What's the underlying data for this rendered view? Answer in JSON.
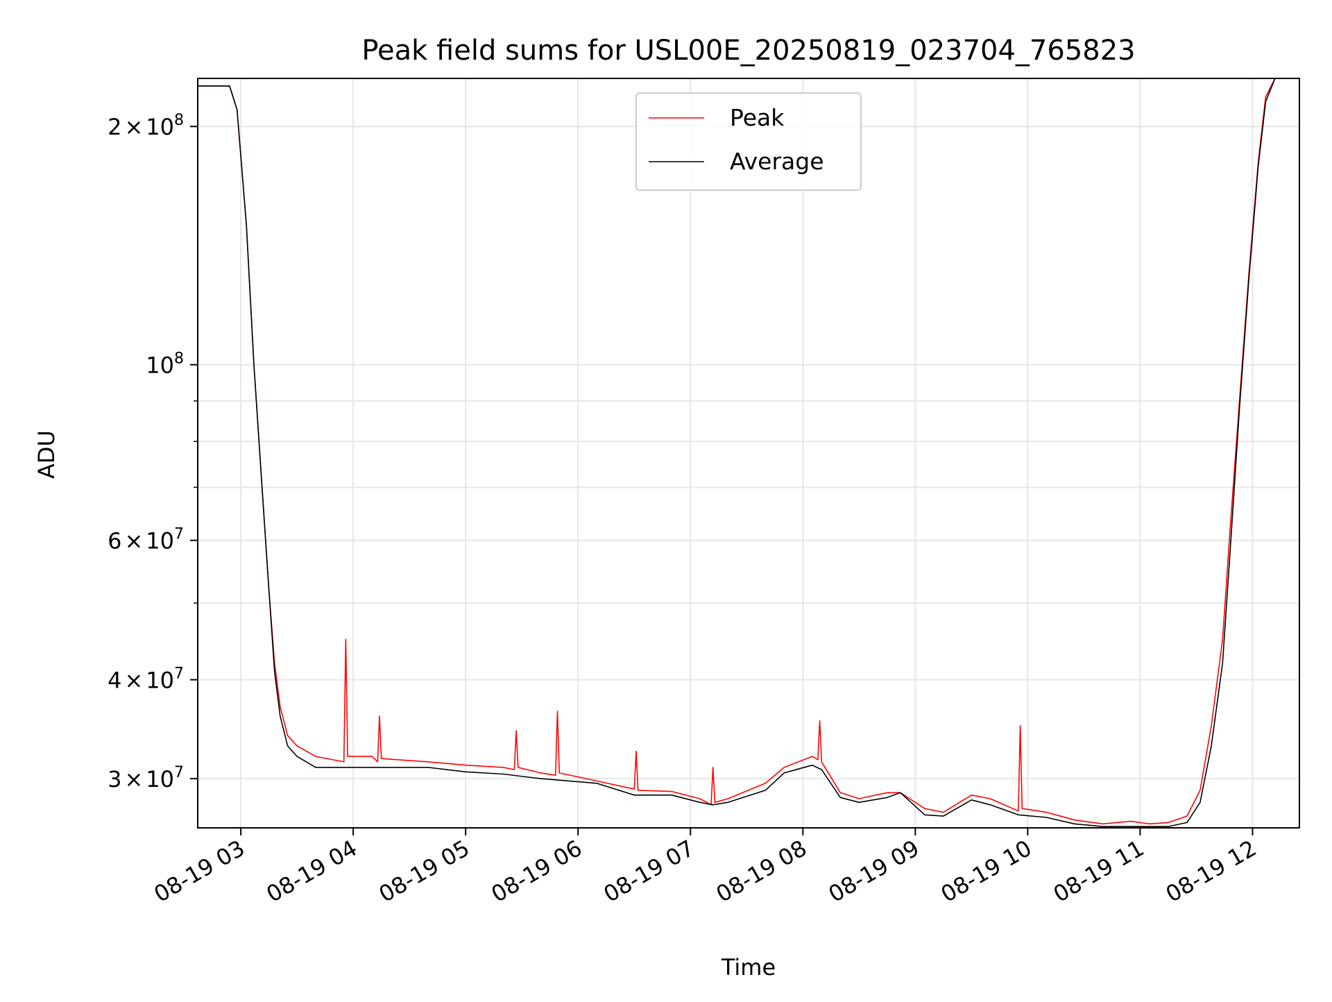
{
  "chart_data": {
    "type": "line",
    "title": "Peak field sums for USL00E_20250819_023704_765823",
    "xlabel": "Time",
    "ylabel": "ADU",
    "yscale": "log",
    "xlim": [
      "2025-08-19 02:37",
      "2025-08-19 12:25"
    ],
    "ylim": [
      26000000,
      230000000
    ],
    "grid": true,
    "legend_position": "upper center",
    "x_ticks": [
      {
        "value": "2025-08-19 03:00",
        "label": "08-19 03"
      },
      {
        "value": "2025-08-19 04:00",
        "label": "08-19 04"
      },
      {
        "value": "2025-08-19 05:00",
        "label": "08-19 05"
      },
      {
        "value": "2025-08-19 06:00",
        "label": "08-19 06"
      },
      {
        "value": "2025-08-19 07:00",
        "label": "08-19 07"
      },
      {
        "value": "2025-08-19 08:00",
        "label": "08-19 08"
      },
      {
        "value": "2025-08-19 09:00",
        "label": "08-19 09"
      },
      {
        "value": "2025-08-19 10:00",
        "label": "08-19 10"
      },
      {
        "value": "2025-08-19 11:00",
        "label": "08-19 11"
      },
      {
        "value": "2025-08-19 12:00",
        "label": "08-19 12"
      }
    ],
    "y_ticks": [
      {
        "value": 30000000,
        "mant": "3",
        "exp": "7"
      },
      {
        "value": 40000000,
        "mant": "4",
        "exp": "7"
      },
      {
        "value": 60000000,
        "mant": "6",
        "exp": "7"
      },
      {
        "value": 100000000,
        "mant": "",
        "exp": "8"
      },
      {
        "value": 200000000,
        "mant": "2",
        "exp": "8"
      }
    ],
    "y_minor_ticks": [
      50000000,
      70000000,
      80000000,
      90000000
    ],
    "series": [
      {
        "name": "Peak",
        "color": "#ff0000",
        "x": [
          "2025-08-19 02:37",
          "2025-08-19 02:51",
          "2025-08-19 02:54",
          "2025-08-19 02:58",
          "2025-08-19 03:03",
          "2025-08-19 03:07",
          "2025-08-19 03:11",
          "2025-08-19 03:15",
          "2025-08-19 03:18",
          "2025-08-19 03:21",
          "2025-08-19 03:25",
          "2025-08-19 03:30",
          "2025-08-19 03:40",
          "2025-08-19 03:55",
          "2025-08-19 03:56",
          "2025-08-19 03:57",
          "2025-08-19 04:10",
          "2025-08-19 04:13",
          "2025-08-19 04:14",
          "2025-08-19 04:15",
          "2025-08-19 04:40",
          "2025-08-19 05:00",
          "2025-08-19 05:20",
          "2025-08-19 05:26",
          "2025-08-19 05:27",
          "2025-08-19 05:28",
          "2025-08-19 05:40",
          "2025-08-19 05:48",
          "2025-08-19 05:49",
          "2025-08-19 05:50",
          "2025-08-19 06:10",
          "2025-08-19 06:30",
          "2025-08-19 06:31",
          "2025-08-19 06:32",
          "2025-08-19 06:50",
          "2025-08-19 07:05",
          "2025-08-19 07:11",
          "2025-08-19 07:12",
          "2025-08-19 07:13",
          "2025-08-19 07:20",
          "2025-08-19 07:40",
          "2025-08-19 07:50",
          "2025-08-19 08:05",
          "2025-08-19 08:08",
          "2025-08-19 08:09",
          "2025-08-19 08:10",
          "2025-08-19 08:20",
          "2025-08-19 08:30",
          "2025-08-19 08:45",
          "2025-08-19 08:52",
          "2025-08-19 09:05",
          "2025-08-19 09:15",
          "2025-08-19 09:30",
          "2025-08-19 09:40",
          "2025-08-19 09:55",
          "2025-08-19 09:56",
          "2025-08-19 09:57",
          "2025-08-19 10:10",
          "2025-08-19 10:25",
          "2025-08-19 10:40",
          "2025-08-19 10:55",
          "2025-08-19 11:05",
          "2025-08-19 11:15",
          "2025-08-19 11:25",
          "2025-08-19 11:32",
          "2025-08-19 11:38",
          "2025-08-19 11:44",
          "2025-08-19 11:48",
          "2025-08-19 11:53",
          "2025-08-19 11:58",
          "2025-08-19 12:03",
          "2025-08-19 12:07",
          "2025-08-19 12:12",
          "2025-08-19 12:25"
        ],
        "y": [
          225000000,
          225000000,
          225000000,
          210000000,
          150000000,
          100000000,
          72000000,
          52000000,
          42000000,
          37000000,
          34000000,
          33000000,
          32000000,
          31500000,
          45000000,
          32000000,
          32000000,
          31500000,
          36000000,
          31800000,
          31500000,
          31200000,
          31000000,
          30800000,
          34500000,
          31000000,
          30500000,
          30300000,
          36500000,
          30500000,
          29800000,
          29100000,
          32500000,
          29000000,
          28900000,
          28300000,
          27800000,
          31000000,
          28000000,
          28300000,
          29600000,
          31000000,
          32000000,
          31700000,
          35500000,
          31500000,
          28800000,
          28300000,
          28800000,
          28800000,
          27500000,
          27200000,
          28600000,
          28300000,
          27300000,
          35000000,
          27500000,
          27200000,
          26600000,
          26300000,
          26500000,
          26300000,
          26400000,
          26900000,
          29000000,
          35000000,
          45000000,
          62000000,
          90000000,
          130000000,
          180000000,
          218000000,
          230000000,
          230000000
        ]
      },
      {
        "name": "Average",
        "color": "#000000",
        "x": [
          "2025-08-19 02:37",
          "2025-08-19 02:51",
          "2025-08-19 02:54",
          "2025-08-19 02:58",
          "2025-08-19 03:03",
          "2025-08-19 03:07",
          "2025-08-19 03:11",
          "2025-08-19 03:15",
          "2025-08-19 03:18",
          "2025-08-19 03:21",
          "2025-08-19 03:25",
          "2025-08-19 03:30",
          "2025-08-19 03:40",
          "2025-08-19 03:55",
          "2025-08-19 04:10",
          "2025-08-19 04:40",
          "2025-08-19 05:00",
          "2025-08-19 05:20",
          "2025-08-19 05:40",
          "2025-08-19 06:10",
          "2025-08-19 06:30",
          "2025-08-19 06:50",
          "2025-08-19 07:05",
          "2025-08-19 07:12",
          "2025-08-19 07:20",
          "2025-08-19 07:40",
          "2025-08-19 07:50",
          "2025-08-19 08:05",
          "2025-08-19 08:10",
          "2025-08-19 08:20",
          "2025-08-19 08:30",
          "2025-08-19 08:45",
          "2025-08-19 08:52",
          "2025-08-19 09:05",
          "2025-08-19 09:15",
          "2025-08-19 09:30",
          "2025-08-19 09:40",
          "2025-08-19 09:55",
          "2025-08-19 10:10",
          "2025-08-19 10:25",
          "2025-08-19 10:40",
          "2025-08-19 10:55",
          "2025-08-19 11:05",
          "2025-08-19 11:15",
          "2025-08-19 11:25",
          "2025-08-19 11:32",
          "2025-08-19 11:38",
          "2025-08-19 11:44",
          "2025-08-19 11:48",
          "2025-08-19 11:53",
          "2025-08-19 11:58",
          "2025-08-19 12:03",
          "2025-08-19 12:07",
          "2025-08-19 12:12",
          "2025-08-19 12:25"
        ],
        "y": [
          225000000,
          225000000,
          225000000,
          210000000,
          150000000,
          100000000,
          72000000,
          52000000,
          41000000,
          36000000,
          33000000,
          32000000,
          31000000,
          31000000,
          31000000,
          31000000,
          30600000,
          30400000,
          30000000,
          29600000,
          28600000,
          28600000,
          28000000,
          27800000,
          28000000,
          29000000,
          30500000,
          31200000,
          30800000,
          28400000,
          28000000,
          28400000,
          28800000,
          27000000,
          26900000,
          28200000,
          27800000,
          27000000,
          26800000,
          26300000,
          26100000,
          26100000,
          26100000,
          26100000,
          26400000,
          28000000,
          33000000,
          42000000,
          58000000,
          88000000,
          128000000,
          178000000,
          215000000,
          230000000,
          230000000
        ]
      }
    ]
  }
}
